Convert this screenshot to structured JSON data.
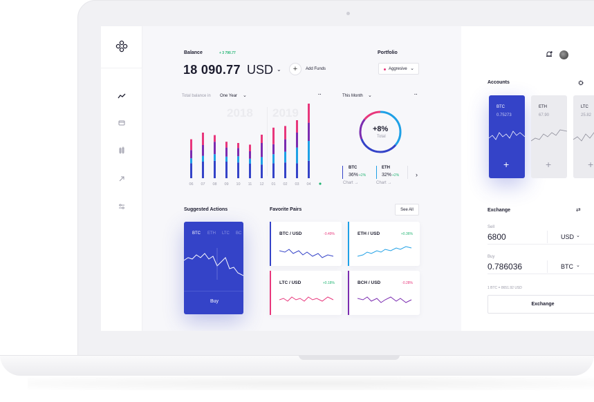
{
  "balance": {
    "label": "Balance",
    "change": "+ 3 790.77",
    "amount": "18 090.77",
    "currency": "USD",
    "add_funds": "Add Funds"
  },
  "portfolio": {
    "label": "Portfolio",
    "value": "Aggresive"
  },
  "total_balance": {
    "label": "Total balance in",
    "period": "One Year",
    "years": [
      "2018",
      "2019"
    ],
    "months": [
      "06",
      "07",
      "08",
      "09",
      "10",
      "11",
      "12",
      "01",
      "02",
      "03",
      "04"
    ]
  },
  "this_month": {
    "label": "This Month",
    "percent": "+8%",
    "caption": "Total",
    "coins": [
      {
        "name": "BTC",
        "share": "36%",
        "change": "+2%",
        "link": "Chart →"
      },
      {
        "name": "ETH",
        "share": "32%",
        "change": "+2%",
        "link": "Chart →"
      }
    ]
  },
  "suggested": {
    "label": "Suggested Actions",
    "tabs": [
      "BTC",
      "ETH",
      "LTC",
      "BC"
    ],
    "buy": "Buy"
  },
  "favorites": {
    "label": "Favorite Pairs",
    "see_all": "See All",
    "pairs": [
      {
        "name": "BTC / USD",
        "change": "-0.49%",
        "color": "#3443c8"
      },
      {
        "name": "ETH / USD",
        "change": "+0.36%",
        "color": "#1ea0e6"
      },
      {
        "name": "LTC / USD",
        "change": "+0.18%",
        "color": "#e8377c"
      },
      {
        "name": "BCH / USD",
        "change": "-0.28%",
        "color": "#7b2cb0"
      }
    ]
  },
  "accounts": {
    "label": "Accounts",
    "items": [
      {
        "name": "BTC",
        "value": "0.75273"
      },
      {
        "name": "ETH",
        "value": "67.90"
      },
      {
        "name": "LTC",
        "value": "25.82"
      }
    ]
  },
  "exchange": {
    "label": "Exchange",
    "sell_label": "Sell",
    "sell_value": "6800",
    "sell_currency": "USD",
    "buy_label": "Buy",
    "buy_value": "0.786036",
    "buy_currency": "BTC",
    "rate": "1 BTC = 8651.92 USD",
    "button": "Exchange"
  },
  "chart_data": {
    "type": "bar",
    "categories": [
      "06",
      "07",
      "08",
      "09",
      "10",
      "11",
      "12",
      "01",
      "02",
      "03",
      "04"
    ],
    "series": [
      {
        "values": [
          36,
          40,
          42,
          40,
          38,
          35,
          33,
          36,
          38,
          36,
          42
        ],
        "color": "#3443c8"
      },
      {
        "values": [
          12,
          14,
          16,
          12,
          15,
          12,
          18,
          22,
          26,
          38,
          48
        ],
        "color": "#1ea0e6"
      },
      {
        "values": [
          20,
          26,
          30,
          22,
          20,
          18,
          34,
          24,
          30,
          36,
          44
        ],
        "color": "#7b2cb0"
      },
      {
        "values": [
          26,
          30,
          16,
          14,
          12,
          16,
          20,
          40,
          32,
          30,
          46
        ],
        "color": "#e8377c"
      }
    ],
    "title": "",
    "xlabel": "",
    "ylabel": ""
  },
  "colors": {
    "accent": "#3443c8",
    "positive": "#22b573",
    "negative": "#e8377c"
  }
}
